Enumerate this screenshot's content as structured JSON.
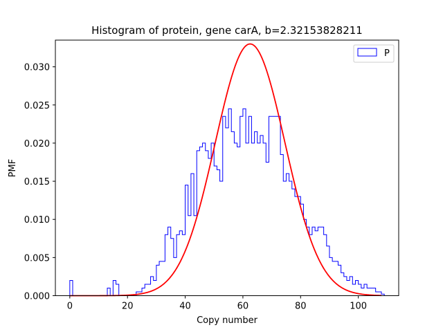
{
  "chart_data": {
    "type": "histogram",
    "title": "Histogram of protein, gene carA, b=2.32153828211",
    "xlabel": "Copy number",
    "ylabel": "PMF",
    "xlim": [
      -5,
      114
    ],
    "ylim": [
      0,
      0.0335
    ],
    "xticks": [
      0,
      20,
      40,
      60,
      80,
      100
    ],
    "yticks": [
      0.0,
      0.005,
      0.01,
      0.015,
      0.02,
      0.025,
      0.03
    ],
    "ytick_labels": [
      "0.000",
      "0.005",
      "0.010",
      "0.015",
      "0.020",
      "0.025",
      "0.030"
    ],
    "xtick_labels": [
      "0",
      "20",
      "40",
      "60",
      "80",
      "100"
    ],
    "grid": false,
    "legend": {
      "placement": "top-right",
      "entries": [
        "P"
      ]
    },
    "histogram": {
      "name": "P",
      "color": "#0000ff",
      "bin_start": 0,
      "bin_width": 1,
      "values": [
        0.002,
        0,
        0,
        0,
        0,
        0,
        0,
        0,
        0,
        0,
        0,
        0,
        0,
        0.001,
        0,
        0.002,
        0.0015,
        0,
        0,
        0,
        0,
        0,
        0,
        0.0005,
        0.0005,
        0.001,
        0.0015,
        0.0015,
        0.0025,
        0.002,
        0.004,
        0.0045,
        0.0045,
        0.008,
        0.009,
        0.0075,
        0.005,
        0.008,
        0.0085,
        0.008,
        0.0145,
        0.0105,
        0.016,
        0.0105,
        0.019,
        0.0195,
        0.02,
        0.019,
        0.018,
        0.02,
        0.017,
        0.0165,
        0.015,
        0.0235,
        0.022,
        0.0245,
        0.0215,
        0.02,
        0.0195,
        0.0235,
        0.0245,
        0.02,
        0.0235,
        0.02,
        0.0215,
        0.02,
        0.021,
        0.02,
        0.0175,
        0.0235,
        0.0235,
        0.0235,
        0.0235,
        0.0185,
        0.015,
        0.016,
        0.015,
        0.014,
        0.013,
        0.013,
        0.012,
        0.01,
        0.009,
        0.008,
        0.009,
        0.0085,
        0.009,
        0.009,
        0.008,
        0.0065,
        0.005,
        0.0045,
        0.0045,
        0.004,
        0.003,
        0.0025,
        0.002,
        0.0025,
        0.0015,
        0.002,
        0.0015,
        0.001,
        0.0015,
        0.001,
        0.001,
        0.001,
        0.0005,
        0.0005,
        0.0002
      ]
    },
    "curve": {
      "color": "#ff0000",
      "type": "gaussian",
      "mean": 62.5,
      "std": 12.1,
      "peak": 0.033,
      "x_range": [
        0,
        108
      ]
    }
  }
}
